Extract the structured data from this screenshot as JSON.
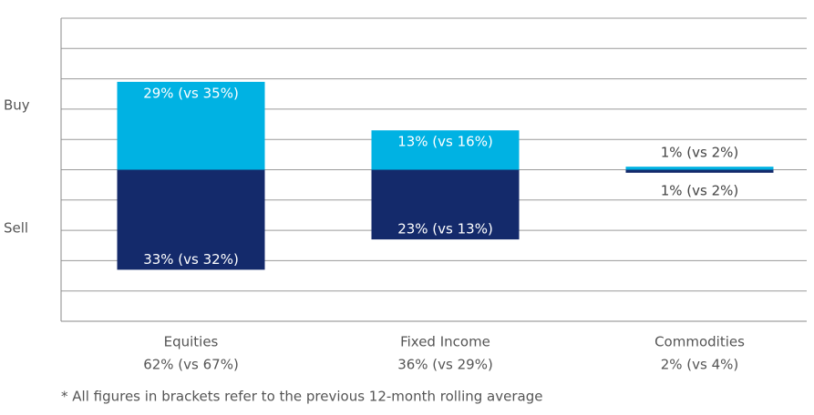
{
  "chart_data": {
    "type": "diverging-bar",
    "y_axis_labels": [
      "Buy",
      "Sell"
    ],
    "categories": [
      "Equities",
      "Fixed Income",
      "Commodities"
    ],
    "category_sublabels": [
      "62% (vs 67%)",
      "36% (vs 29%)",
      "2% (vs 4%)"
    ],
    "series": [
      {
        "name": "Buy",
        "color": "#00b2e3",
        "values": [
          29,
          13,
          1
        ],
        "value_labels": [
          "29% (vs 35%)",
          "13% (vs 16%)",
          "1% (vs 2%)"
        ]
      },
      {
        "name": "Sell",
        "color": "#142a6b",
        "values": [
          -33,
          -23,
          -1
        ],
        "value_labels": [
          "33% (vs 32%)",
          "23% (vs 13%)",
          "1% (vs 2%)"
        ]
      }
    ],
    "ylim": [
      -50,
      50
    ],
    "yticks": [
      -40,
      -30,
      -20,
      -10,
      0,
      10,
      20,
      30,
      40,
      50
    ],
    "grid": true,
    "footnote": "* All figures in brackets refer to the previous 12-month rolling average"
  }
}
